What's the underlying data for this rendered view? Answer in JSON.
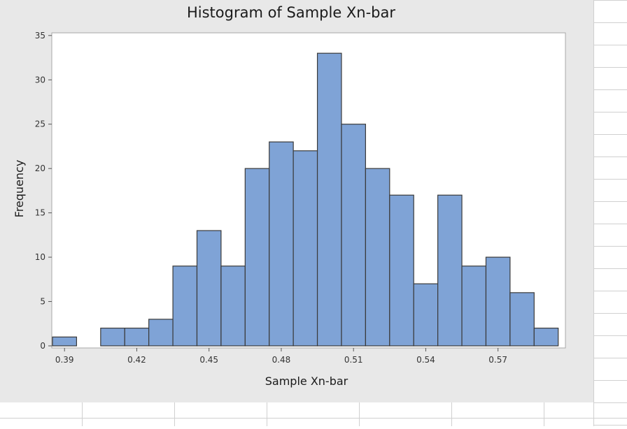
{
  "colors": {
    "bar_fill": "#7fa3d6",
    "bar_stroke": "#3a3a3a",
    "plot_bg": "#ffffff",
    "window_bg": "#e8e8e8",
    "grid_line": "#d0d0d0"
  },
  "chart_data": {
    "type": "bar",
    "title": "Histogram of Sample Xn-bar",
    "xlabel": "Sample Xn-bar",
    "ylabel": "Frequency",
    "bin_width": 0.01,
    "x": [
      0.39,
      0.4,
      0.41,
      0.42,
      0.43,
      0.44,
      0.45,
      0.46,
      0.47,
      0.48,
      0.49,
      0.5,
      0.51,
      0.52,
      0.53,
      0.54,
      0.55,
      0.56,
      0.57,
      0.58,
      0.59
    ],
    "values": [
      1,
      0,
      2,
      2,
      3,
      9,
      13,
      9,
      20,
      23,
      22,
      33,
      25,
      20,
      17,
      7,
      17,
      9,
      10,
      6,
      2
    ],
    "xticks": [
      "0.39",
      "0.42",
      "0.45",
      "0.48",
      "0.51",
      "0.54",
      "0.57"
    ],
    "xtick_values": [
      0.39,
      0.42,
      0.45,
      0.48,
      0.51,
      0.54,
      0.57
    ],
    "yticks": [
      0,
      5,
      10,
      15,
      20,
      25,
      30,
      35
    ],
    "xlim": [
      0.385,
      0.5977
    ],
    "ylim": [
      0,
      35.3
    ],
    "grid": false,
    "legend": "none"
  }
}
